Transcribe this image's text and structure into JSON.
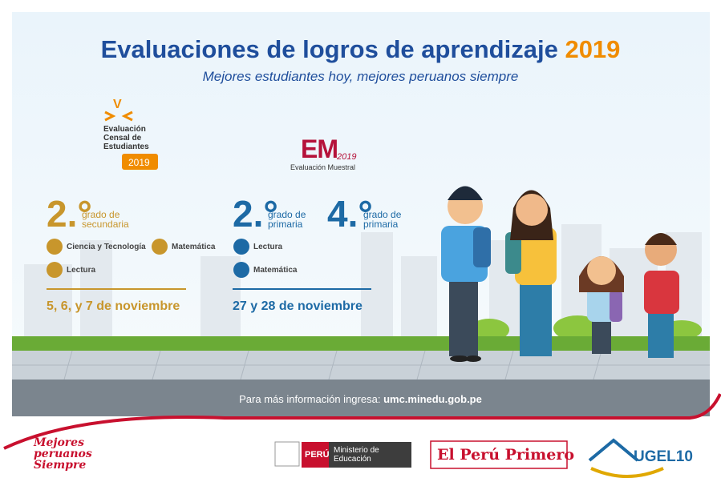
{
  "header": {
    "title": "Evaluaciones de logros de aprendizaje",
    "year": "2019",
    "subtitle": "Mejores estudiantes hoy, mejores peruanos siempre"
  },
  "ece_logo": {
    "mark": "V",
    "line1": "Evaluación",
    "line2": "Censal de",
    "line3": "Estudiantes",
    "year": "2019"
  },
  "em_logo": {
    "mark": "EM",
    "year": "2019",
    "caption": "Evaluación Muestral"
  },
  "secundaria": {
    "grade": "2.°",
    "label": "grado de secundaria",
    "subjects": [
      "Ciencia y Tecnología",
      "Matemática",
      "Lectura"
    ],
    "dates": "5, 6, y 7 de noviembre"
  },
  "primaria": {
    "grades": [
      {
        "grade": "2.°",
        "label": "grado de primaria"
      },
      {
        "grade": "4.°",
        "label": "grado de primaria"
      }
    ],
    "subjects": [
      "Lectura",
      "Matemática"
    ],
    "dates": "27 y 28 de noviembre"
  },
  "footer": {
    "info": "Para más información ingresa:",
    "url": "umc.minedu.gob.pe"
  },
  "logos": {
    "mejores": "Mejores peruanos Siempre",
    "peru": "PERÚ",
    "ministerio": "Ministerio de Educación",
    "primero": "El Perú Primero",
    "ugel": "UGEL10"
  }
}
